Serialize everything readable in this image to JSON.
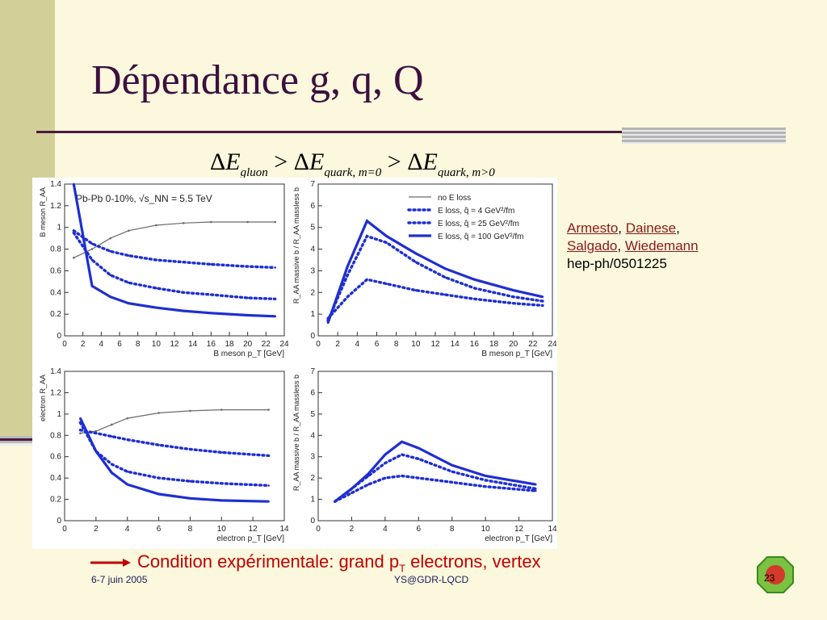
{
  "slide": {
    "title": "Dépendance g, q, Q",
    "formula": {
      "delta": "Δ",
      "E": "E",
      "gt": ">",
      "sub1": "gluon",
      "sub2": "quark, m=0",
      "sub3": "quark, m>0"
    },
    "refs": {
      "authors": [
        "Armesto",
        "Dainese",
        "Salgado",
        "Wiedemann"
      ],
      "sep": ", ",
      "preprint": "hep-ph/0501225"
    },
    "condition": {
      "text_before": "Condition expérimentale: grand p",
      "subscript": "T",
      "text_after": " electrons, vertex"
    },
    "footer": {
      "date": "6-7 juin 2005",
      "center": "YS@GDR-LQCD",
      "page": "23"
    }
  },
  "colors": {
    "title": "#3d1040",
    "background": "#fbf8dd",
    "sidebar": "#d3cf99",
    "rule": "#4b1b3f",
    "condition": "#c00000",
    "curve_blue": "#1f2fd0",
    "curve_grey": "#6b6b6b"
  },
  "chart_data": [
    {
      "type": "line",
      "annotation": "Pb-Pb 0-10%, √s_NN = 5.5 TeV",
      "xlabel": "B meson p_T [GeV]",
      "ylabel": "B meson R_AA",
      "xlim": [
        0,
        24
      ],
      "ylim": [
        0,
        1.4
      ],
      "xticks": [
        0,
        2,
        4,
        6,
        8,
        10,
        12,
        14,
        16,
        18,
        20,
        22,
        24
      ],
      "yticks": [
        0,
        0.2,
        0.4,
        0.6,
        0.8,
        1,
        1.2,
        1.4
      ],
      "series": [
        {
          "name": "no E loss",
          "style": "thin-grey",
          "x": [
            1,
            3,
            5,
            7,
            10,
            13,
            16,
            20,
            23
          ],
          "y": [
            0.72,
            0.8,
            0.9,
            0.97,
            1.02,
            1.04,
            1.05,
            1.05,
            1.05
          ]
        },
        {
          "name": "E loss, q̂ = 4 GeV²/fm",
          "style": "dotted",
          "x": [
            1,
            3,
            5,
            7,
            10,
            13,
            16,
            20,
            23
          ],
          "y": [
            0.97,
            0.85,
            0.78,
            0.74,
            0.7,
            0.68,
            0.66,
            0.64,
            0.63
          ]
        },
        {
          "name": "E loss, q̂ = 25 GeV²/fm",
          "style": "dotted",
          "x": [
            1,
            3,
            5,
            7,
            10,
            13,
            16,
            20,
            23
          ],
          "y": [
            0.95,
            0.7,
            0.56,
            0.49,
            0.44,
            0.4,
            0.38,
            0.35,
            0.34
          ]
        },
        {
          "name": "E loss, q̂ = 100 GeV²/fm",
          "style": "thick",
          "x": [
            1,
            3,
            5,
            7,
            10,
            13,
            16,
            20,
            23
          ],
          "y": [
            1.4,
            0.46,
            0.36,
            0.3,
            0.26,
            0.23,
            0.21,
            0.19,
            0.18
          ]
        }
      ]
    },
    {
      "type": "line",
      "xlabel": "B meson p_T [GeV]",
      "ylabel": "R_AA massive b / R_AA massless b",
      "xlim": [
        0,
        24
      ],
      "ylim": [
        0,
        7
      ],
      "xticks": [
        0,
        2,
        4,
        6,
        8,
        10,
        12,
        14,
        16,
        18,
        20,
        22,
        24
      ],
      "yticks": [
        0,
        1,
        2,
        3,
        4,
        5,
        6,
        7
      ],
      "legend_position": "top-right",
      "legend": [
        "no E loss",
        "E loss, q̂ = 4 GeV²/fm",
        "E loss, q̂ = 25 GeV²/fm",
        "E loss, q̂ = 100 GeV²/fm"
      ],
      "series": [
        {
          "name": "E loss, q̂ = 4 GeV²/fm",
          "style": "dotted",
          "x": [
            1,
            3,
            5,
            7,
            10,
            13,
            16,
            20,
            23
          ],
          "y": [
            0.8,
            1.8,
            2.6,
            2.4,
            2.1,
            1.9,
            1.7,
            1.5,
            1.4
          ]
        },
        {
          "name": "E loss, q̂ = 25 GeV²/fm",
          "style": "dotted",
          "x": [
            1,
            3,
            5,
            7,
            10,
            13,
            16,
            20,
            23
          ],
          "y": [
            0.7,
            2.8,
            4.6,
            4.3,
            3.4,
            2.7,
            2.2,
            1.8,
            1.6
          ]
        },
        {
          "name": "E loss, q̂ = 100 GeV²/fm",
          "style": "thick",
          "x": [
            1,
            3,
            5,
            7,
            10,
            13,
            16,
            20,
            23
          ],
          "y": [
            0.6,
            3.2,
            5.3,
            4.6,
            3.8,
            3.1,
            2.6,
            2.1,
            1.8
          ]
        }
      ]
    },
    {
      "type": "line",
      "xlabel": "electron p_T [GeV]",
      "ylabel": "electron R_AA",
      "xlim": [
        0,
        14
      ],
      "ylim": [
        0,
        1.4
      ],
      "xticks": [
        0,
        2,
        4,
        6,
        8,
        10,
        12,
        14
      ],
      "yticks": [
        0,
        0.2,
        0.4,
        0.6,
        0.8,
        1,
        1.2,
        1.4
      ],
      "series": [
        {
          "name": "no E loss",
          "style": "thin-grey",
          "x": [
            1,
            2,
            3,
            4,
            6,
            8,
            10,
            13
          ],
          "y": [
            0.82,
            0.84,
            0.9,
            0.96,
            1.01,
            1.03,
            1.04,
            1.04
          ]
        },
        {
          "name": "E loss, q̂ = 4 GeV²/fm",
          "style": "dotted",
          "x": [
            1,
            2,
            3,
            4,
            6,
            8,
            10,
            13
          ],
          "y": [
            0.85,
            0.82,
            0.79,
            0.76,
            0.71,
            0.67,
            0.64,
            0.61
          ]
        },
        {
          "name": "E loss, q̂ = 25 GeV²/fm",
          "style": "dotted",
          "x": [
            1,
            2,
            3,
            4,
            6,
            8,
            10,
            13
          ],
          "y": [
            0.92,
            0.65,
            0.53,
            0.46,
            0.4,
            0.37,
            0.35,
            0.33
          ]
        },
        {
          "name": "E loss, q̂ = 100 GeV²/fm",
          "style": "thick",
          "x": [
            1,
            2,
            3,
            4,
            6,
            8,
            10,
            13
          ],
          "y": [
            0.96,
            0.65,
            0.45,
            0.34,
            0.25,
            0.21,
            0.19,
            0.18
          ]
        }
      ]
    },
    {
      "type": "line",
      "xlabel": "electron p_T [GeV]",
      "ylabel": "R_AA massive b / R_AA massless b",
      "xlim": [
        0,
        14
      ],
      "ylim": [
        0,
        7
      ],
      "xticks": [
        0,
        2,
        4,
        6,
        8,
        10,
        12,
        14
      ],
      "yticks": [
        0,
        1,
        2,
        3,
        4,
        5,
        6,
        7
      ],
      "series": [
        {
          "name": "E loss, q̂ = 4 GeV²/fm",
          "style": "dotted",
          "x": [
            1,
            2,
            3,
            4,
            5,
            6,
            8,
            10,
            13
          ],
          "y": [
            0.9,
            1.3,
            1.7,
            2.0,
            2.1,
            2.0,
            1.8,
            1.6,
            1.4
          ]
        },
        {
          "name": "E loss, q̂ = 25 GeV²/fm",
          "style": "dotted",
          "x": [
            1,
            2,
            3,
            4,
            5,
            6,
            8,
            10,
            13
          ],
          "y": [
            0.9,
            1.5,
            2.1,
            2.7,
            3.1,
            2.9,
            2.3,
            1.9,
            1.5
          ]
        },
        {
          "name": "E loss, q̂ = 100 GeV²/fm",
          "style": "thick",
          "x": [
            1,
            2,
            3,
            4,
            5,
            6,
            8,
            10,
            13
          ],
          "y": [
            0.9,
            1.5,
            2.2,
            3.1,
            3.7,
            3.4,
            2.6,
            2.1,
            1.7
          ]
        }
      ]
    }
  ]
}
